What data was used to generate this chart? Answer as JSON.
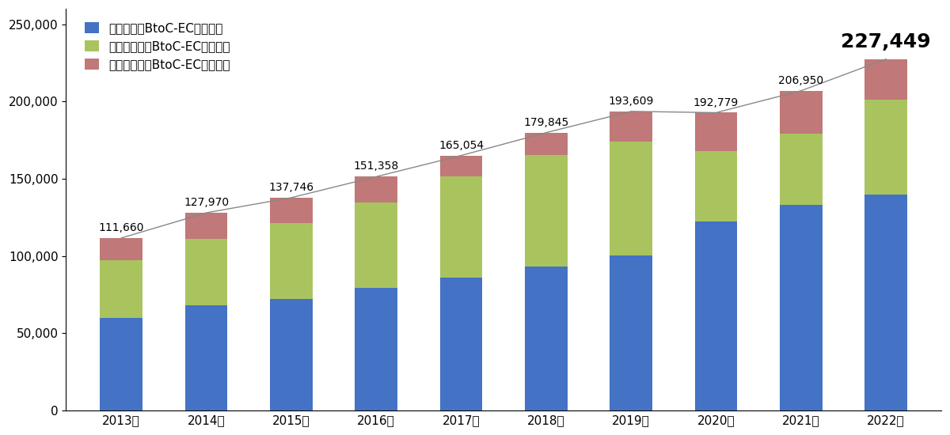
{
  "years": [
    "2013年",
    "2014年",
    "2015年",
    "2016年",
    "2017年",
    "2018年",
    "2019年",
    "2020年",
    "2021年",
    "2022年"
  ],
  "busshi": [
    59713,
    68042,
    72398,
    79333,
    86008,
    92992,
    100515,
    122334,
    132865,
    139997
  ],
  "service": [
    37642,
    43052,
    49165,
    55425,
    65318,
    72388,
    73669,
    45832,
    46424,
    60971
  ],
  "digital": [
    14305,
    16876,
    16183,
    16600,
    13728,
    14465,
    19425,
    24613,
    27661,
    26481
  ],
  "totals": [
    111660,
    127970,
    137746,
    151358,
    165054,
    179845,
    193609,
    192779,
    206950,
    227449
  ],
  "highlight_year_index": 9,
  "bar_color_busshi": "#4472C4",
  "bar_color_service": "#A9C45F",
  "bar_color_digital": "#C07878",
  "line_color": "#888888",
  "background_color": "#FFFFFF",
  "legend_busshi": "物販系分野BtoC-EC市場規模",
  "legend_service": "サービス分野BtoC-EC市場規模",
  "legend_digital": "デジタル分野BtoC-EC市場規模",
  "ylim_max": 260000,
  "yticks": [
    0,
    50000,
    100000,
    150000,
    200000,
    250000
  ],
  "bar_width": 0.5
}
